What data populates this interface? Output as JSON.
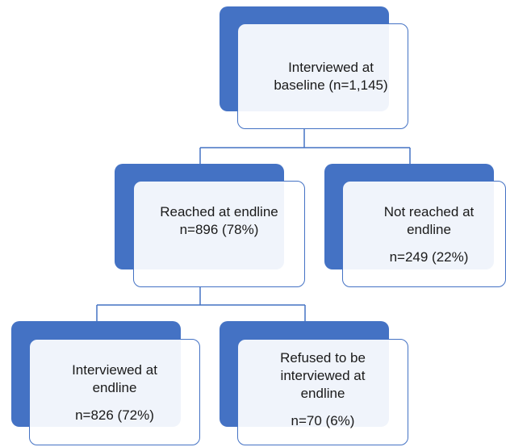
{
  "diagram": {
    "colors": {
      "accent": "#4472c4",
      "box_fill": "#ffffff",
      "line": "#4472c4",
      "text": "#1a1a1a"
    },
    "nodes": {
      "baseline": {
        "line1": "Interviewed at",
        "line2": "baseline (n=1,145)"
      },
      "reached": {
        "line1": "Reached at endline",
        "line2": "n=896 (78%)"
      },
      "not_reached": {
        "line1": "Not reached at",
        "line2": "endline",
        "line3": "n=249 (22%)"
      },
      "interviewed_endline": {
        "line1": "Interviewed at",
        "line2": "endline",
        "line3": "n=826 (72%)"
      },
      "refused": {
        "line1": "Refused to be",
        "line2": "interviewed at",
        "line3": "endline",
        "line4": "n=70 (6%)"
      }
    }
  }
}
